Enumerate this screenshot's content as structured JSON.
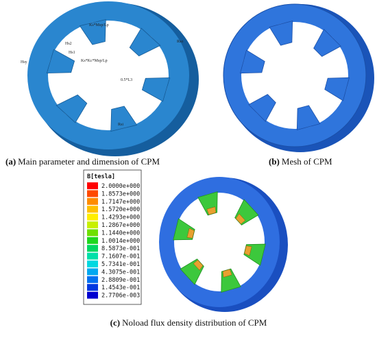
{
  "panel_a": {
    "caption_label": "(a)",
    "caption_text": "Main parameter and dimension of CPM",
    "dimension_labels": [
      "Rso",
      "Hsy",
      "0.5*L3",
      "Rsi",
      "Hs1",
      "Hs2",
      "Ks*Msp/Lp",
      "Ks*Kc*Msp/Lp"
    ]
  },
  "panel_b": {
    "caption_label": "(b)",
    "caption_text": "Mesh of CPM"
  },
  "panel_c": {
    "caption_label": "(c)",
    "caption_text": "Noload flux density distribution of CPM",
    "legend_title": "B[tesla]",
    "legend": [
      {
        "label": "2.0000e+000",
        "color": "#ff0000"
      },
      {
        "label": "1.8573e+000",
        "color": "#ff4a00"
      },
      {
        "label": "1.7147e+000",
        "color": "#ff8c00"
      },
      {
        "label": "1.5720e+000",
        "color": "#ffc000"
      },
      {
        "label": "1.4293e+000",
        "color": "#ffee00"
      },
      {
        "label": "1.2867e+000",
        "color": "#c8f000"
      },
      {
        "label": "1.1440e+000",
        "color": "#6ee000"
      },
      {
        "label": "1.0014e+000",
        "color": "#1ed81e"
      },
      {
        "label": "8.5873e-001",
        "color": "#00d860"
      },
      {
        "label": "7.1607e-001",
        "color": "#00e0a8"
      },
      {
        "label": "5.7341e-001",
        "color": "#00d8e0"
      },
      {
        "label": "4.3075e-001",
        "color": "#00a8f0"
      },
      {
        "label": "2.8809e-001",
        "color": "#0070f0"
      },
      {
        "label": "1.4543e-001",
        "color": "#0038e0"
      },
      {
        "label": "2.7706e-003",
        "color": "#0000d0"
      }
    ]
  }
}
